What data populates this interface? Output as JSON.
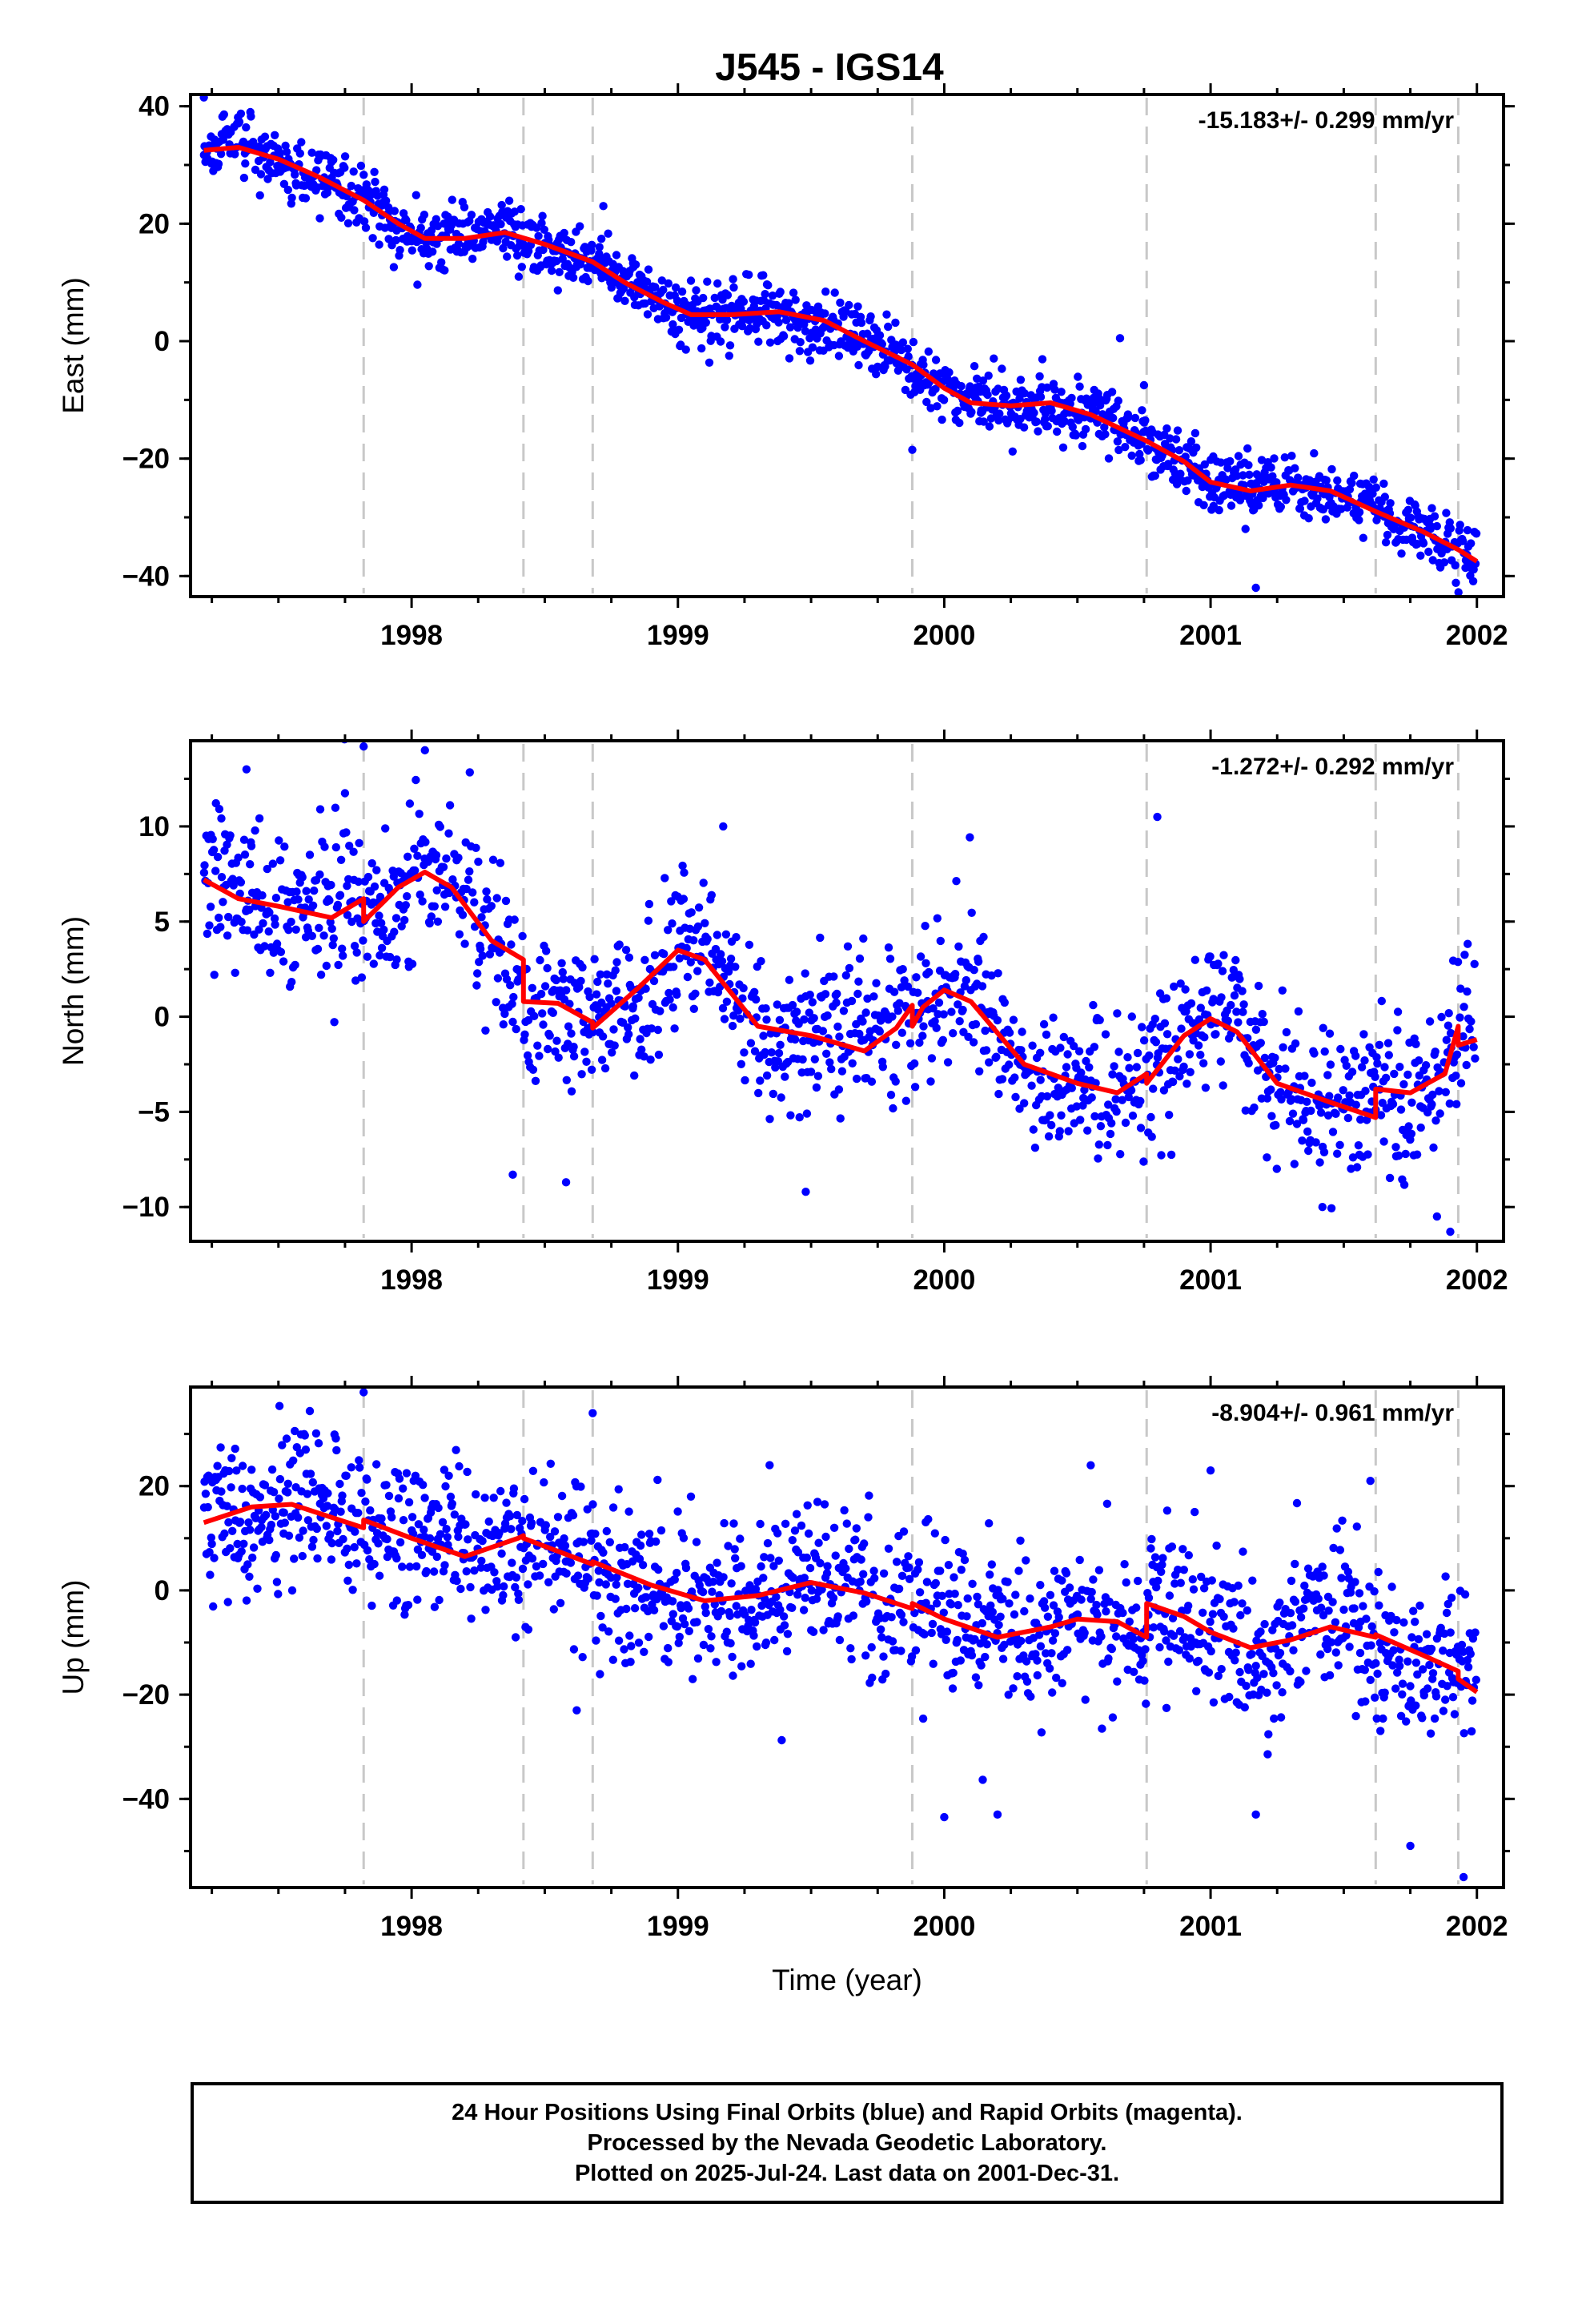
{
  "title": "J545 - IGS14",
  "colors": {
    "data": "#0000ff",
    "model": "#ff0000",
    "events": "#c8c8c8",
    "frame": "#000000"
  },
  "chart_data": [
    {
      "type": "scatter",
      "component": "east",
      "ylabel": "East (mm)",
      "xlabel": "",
      "rate_label": "-15.183+/- 0.299 mm/yr",
      "xlim": [
        1997.17,
        2002.1
      ],
      "ylim": [
        -43.5,
        42.0
      ],
      "xticks": [
        1998,
        1999,
        2000,
        2001,
        2002
      ],
      "yticks": [
        -40,
        -20,
        0,
        20,
        40
      ],
      "event_lines": [
        1997.82,
        1998.42,
        1998.68,
        1999.88,
        2000.76,
        2001.62,
        2001.93
      ],
      "model": {
        "x": [
          1997.22,
          1997.35,
          1997.5,
          1997.65,
          1997.82,
          1997.95,
          1998.05,
          1998.2,
          1998.35,
          1998.5,
          1998.68,
          1998.8,
          1998.95,
          1999.05,
          1999.2,
          1999.38,
          1999.55,
          1999.7,
          1999.88,
          2000.0,
          2000.1,
          2000.25,
          2000.4,
          2000.55,
          2000.76,
          2000.9,
          2001.0,
          2001.15,
          2001.3,
          2001.45,
          2001.62,
          2001.8,
          2001.93,
          2002.0
        ],
        "y": [
          32.5,
          33.0,
          31.0,
          28.0,
          24.0,
          20.0,
          17.5,
          17.5,
          18.5,
          16.5,
          13.5,
          10.0,
          6.5,
          4.5,
          4.5,
          5.0,
          3.5,
          0.0,
          -4.0,
          -8.0,
          -10.5,
          -11.0,
          -10.5,
          -12.5,
          -17.0,
          -20.5,
          -24.0,
          -25.5,
          -24.5,
          -25.5,
          -29.0,
          -32.5,
          -35.5,
          -37.5
        ]
      },
      "points": {
        "n": 1650,
        "seed": 17,
        "noise": 2.6,
        "outliers": [
          [
            1998.72,
            23.0
          ],
          [
            2000.66,
            0.5
          ],
          [
            2001.17,
            -42.0
          ],
          [
            1999.88,
            -18.5
          ],
          [
            1997.22,
            41.5
          ],
          [
            2000.75,
            -7.5
          ]
        ]
      }
    },
    {
      "type": "scatter",
      "component": "north",
      "ylabel": "North (mm)",
      "xlabel": "",
      "rate_label": "-1.272+/- 0.292 mm/yr",
      "xlim": [
        1997.17,
        2002.1
      ],
      "ylim": [
        -11.8,
        14.5
      ],
      "xticks": [
        1998,
        1999,
        2000,
        2001,
        2002
      ],
      "yticks": [
        -10,
        -5,
        0,
        5,
        10
      ],
      "event_lines": [
        1997.82,
        1998.42,
        1998.68,
        1999.88,
        2000.76,
        2001.62,
        2001.93
      ],
      "model": {
        "x": [
          1997.22,
          1997.35,
          1997.5,
          1997.7,
          1997.82,
          1997.82,
          1997.95,
          1998.05,
          1998.15,
          1998.3,
          1998.42,
          1998.42,
          1998.55,
          1998.68,
          1998.68,
          1998.85,
          1999.0,
          1999.1,
          1999.3,
          1999.5,
          1999.7,
          1999.82,
          1999.88,
          1999.88,
          1999.92,
          2000.0,
          2000.1,
          2000.3,
          2000.5,
          2000.65,
          2000.76,
          2000.76,
          2000.9,
          2001.0,
          2001.1,
          2001.25,
          2001.45,
          2001.62,
          2001.62,
          2001.75,
          2001.88,
          2001.93,
          2001.93,
          2002.0
        ],
        "y": [
          7.2,
          6.2,
          5.8,
          5.2,
          6.2,
          5.0,
          6.8,
          7.6,
          6.8,
          4.0,
          3.0,
          0.8,
          0.7,
          -0.3,
          -0.6,
          1.5,
          3.5,
          3.0,
          -0.5,
          -1.0,
          -1.8,
          -0.6,
          0.6,
          -0.5,
          0.5,
          1.4,
          0.8,
          -2.5,
          -3.5,
          -4.0,
          -3.0,
          -3.5,
          -1.0,
          -0.1,
          -0.8,
          -3.5,
          -4.5,
          -5.3,
          -3.8,
          -4.0,
          -3.0,
          -0.5,
          -1.5,
          -1.2
        ]
      },
      "points": {
        "n": 1550,
        "seed": 29,
        "noise": 2.0,
        "outliers": [
          [
            1997.82,
            14.2
          ],
          [
            1998.05,
            14.0
          ],
          [
            2000.8,
            10.5
          ],
          [
            1999.17,
            10.0
          ],
          [
            1998.58,
            -8.7
          ],
          [
            1999.48,
            -9.2
          ],
          [
            2001.9,
            -11.3
          ],
          [
            2001.85,
            -10.5
          ],
          [
            2001.42,
            -10.0
          ],
          [
            1998.38,
            -8.3
          ],
          [
            1997.38,
            13.0
          ]
        ]
      }
    },
    {
      "type": "scatter",
      "component": "up",
      "ylabel": "Up (mm)",
      "xlabel": "Time (year)",
      "rate_label": "-8.904+/- 0.961 mm/yr",
      "xlim": [
        1997.17,
        2002.1
      ],
      "ylim": [
        -57.0,
        39.0
      ],
      "xticks": [
        1998,
        1999,
        2000,
        2001,
        2002
      ],
      "yticks": [
        -40,
        -20,
        0,
        20
      ],
      "event_lines": [
        1997.82,
        1998.42,
        1998.68,
        1999.88,
        2000.76,
        2001.62,
        2001.93
      ],
      "model": {
        "x": [
          1997.22,
          1997.4,
          1997.55,
          1997.7,
          1997.82,
          1997.82,
          1998.0,
          1998.2,
          1998.4,
          1998.42,
          1998.42,
          1998.68,
          1998.68,
          1998.9,
          1999.1,
          1999.3,
          1999.5,
          1999.7,
          1999.88,
          1999.88,
          2000.0,
          2000.2,
          2000.4,
          2000.5,
          2000.65,
          2000.76,
          2000.76,
          2000.9,
          2001.0,
          2001.15,
          2001.3,
          2001.45,
          2001.62,
          2001.62,
          2001.8,
          2001.93,
          2001.93,
          2002.0
        ],
        "y": [
          13.0,
          16.0,
          16.5,
          14.0,
          12.0,
          13.5,
          10.0,
          6.5,
          10.0,
          10.5,
          10.0,
          5.0,
          5.5,
          1.0,
          -2.0,
          -1.0,
          1.5,
          -0.5,
          -3.5,
          -2.5,
          -5.5,
          -9.0,
          -7.0,
          -5.5,
          -6.0,
          -9.0,
          -2.5,
          -5.0,
          -8.0,
          -11.0,
          -9.5,
          -7.0,
          -9.0,
          -8.5,
          -12.5,
          -15.5,
          -17.0,
          -19.5
        ]
      },
      "points": {
        "n": 1600,
        "seed": 41,
        "noise": 7.5,
        "outliers": [
          [
            1997.82,
            38.0
          ],
          [
            1998.68,
            34.0
          ],
          [
            2000.2,
            -43.0
          ],
          [
            2000.0,
            -43.5
          ],
          [
            2001.75,
            -49.0
          ],
          [
            2001.95,
            -55.0
          ],
          [
            2001.17,
            -43.0
          ],
          [
            1998.62,
            -23.0
          ],
          [
            2000.55,
            24.0
          ],
          [
            2001.0,
            23.0
          ],
          [
            2001.6,
            21.0
          ]
        ]
      }
    }
  ],
  "footer": {
    "line1": "24 Hour Positions Using Final Orbits (blue) and Rapid Orbits (magenta).",
    "line2": "Processed by the Nevada Geodetic Laboratory.",
    "line3": "Plotted on 2025-Jul-24. Last data on 2001-Dec-31."
  }
}
